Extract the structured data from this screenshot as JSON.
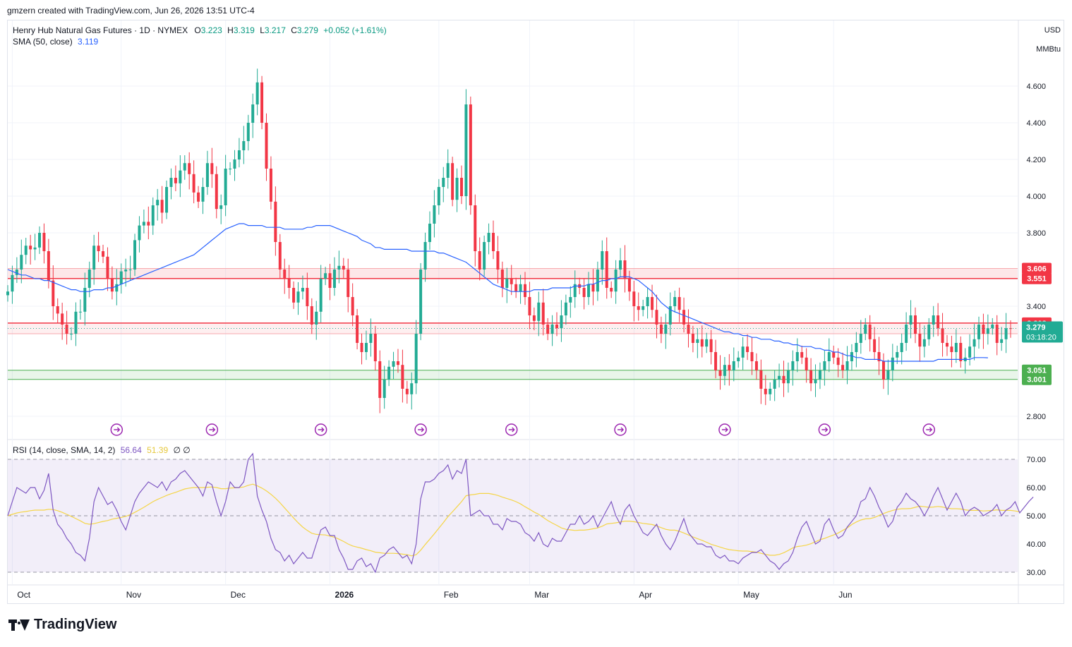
{
  "header": {
    "credit": "gmzern created with TradingView.com, Jun 26, 2026 13:51 UTC-4"
  },
  "legend": {
    "symbol": "Henry Hub Natural Gas Futures · 1D · NYMEX",
    "o_label": "O",
    "o": "3.223",
    "h_label": "H",
    "h": "3.319",
    "l_label": "L",
    "l": "3.217",
    "c_label": "C",
    "c": "3.279",
    "change": "+0.052 (+1.61%)",
    "sma_label": "SMA (50, close)",
    "sma_value": "3.119"
  },
  "units": {
    "currency": "USD",
    "unit": "MMBtu"
  },
  "rsi_legend": {
    "label": "RSI (14, close, SMA, 14, 2)",
    "rsi": "56.64",
    "sma": "51.39",
    "extra": "∅ ∅"
  },
  "footer": {
    "brand": "TradingView"
  },
  "colors": {
    "up": "#22ab94",
    "down": "#f23645",
    "sma": "#2962ff",
    "rsi": "#7e57c2",
    "rsi_sma": "#f5d547",
    "last": "#22ab94"
  },
  "chart_data": [
    {
      "type": "candlestick",
      "ylim": [
        2.7,
        4.8
      ],
      "yticks": [
        4.6,
        4.4,
        4.2,
        4.0,
        3.8,
        3.4,
        2.8
      ],
      "ytick_labels": [
        "4.600",
        "4.400",
        "4.200",
        "4.000",
        "3.800",
        "3.400",
        "2.800"
      ],
      "x_labels": [
        {
          "label": "Oct",
          "i": 1
        },
        {
          "label": "Nov",
          "i": 25
        },
        {
          "label": "Dec",
          "i": 48
        },
        {
          "label": "2026",
          "i": 71
        },
        {
          "label": "Feb",
          "i": 95
        },
        {
          "label": "Mar",
          "i": 115
        },
        {
          "label": "Apr",
          "i": 138
        },
        {
          "label": "May",
          "i": 161
        },
        {
          "label": "Jun",
          "i": 182
        }
      ],
      "resistance_zone": [
        3.551,
        3.606
      ],
      "level_band": [
        3.25,
        3.308
      ],
      "support_zone": [
        3.001,
        3.051
      ],
      "price_labels": [
        {
          "value": "3.606",
          "y": 3.606,
          "kind": "res"
        },
        {
          "value": "3.551",
          "y": 3.551,
          "kind": "res"
        },
        {
          "value": "3.308",
          "y": 3.308,
          "kind": "res"
        },
        {
          "value": "3.250",
          "y": 3.25,
          "kind": "res"
        },
        {
          "value": "3.051",
          "y": 3.051,
          "kind": "sup"
        },
        {
          "value": "3.001",
          "y": 3.001,
          "kind": "sup"
        }
      ],
      "last_price": {
        "value": "3.279",
        "countdown": "03:18:20"
      },
      "event_markers": [
        24,
        45,
        69,
        91,
        111,
        135,
        158,
        180,
        203
      ],
      "closes": [
        3.48,
        3.57,
        3.6,
        3.68,
        3.73,
        3.71,
        3.72,
        3.8,
        3.7,
        3.54,
        3.4,
        3.36,
        3.3,
        3.25,
        3.25,
        3.37,
        3.37,
        3.5,
        3.6,
        3.73,
        3.7,
        3.67,
        3.55,
        3.48,
        3.52,
        3.59,
        3.6,
        3.6,
        3.76,
        3.84,
        3.86,
        3.84,
        3.95,
        3.98,
        3.91,
        4.05,
        4.1,
        4.07,
        4.14,
        4.18,
        4.12,
        4.02,
        3.97,
        4.05,
        4.18,
        4.12,
        3.93,
        3.95,
        4.15,
        4.15,
        4.2,
        4.25,
        4.3,
        4.4,
        4.5,
        4.62,
        4.4,
        4.15,
        3.97,
        3.75,
        3.6,
        3.55,
        3.5,
        3.42,
        3.48,
        3.5,
        3.4,
        3.3,
        3.37,
        3.55,
        3.58,
        3.5,
        3.6,
        3.62,
        3.6,
        3.45,
        3.35,
        3.2,
        3.15,
        3.2,
        3.25,
        3.1,
        2.9,
        3.0,
        3.07,
        3.1,
        3.08,
        2.95,
        2.92,
        2.98,
        3.25,
        3.6,
        3.75,
        3.85,
        3.95,
        4.05,
        4.1,
        4.18,
        3.98,
        4.1,
        4.0,
        4.5,
        3.95,
        3.7,
        3.6,
        3.75,
        3.8,
        3.7,
        3.6,
        3.5,
        3.55,
        3.52,
        3.48,
        3.52,
        3.45,
        3.35,
        3.32,
        3.42,
        3.3,
        3.25,
        3.3,
        3.28,
        3.35,
        3.42,
        3.45,
        3.52,
        3.5,
        3.45,
        3.52,
        3.48,
        3.6,
        3.7,
        3.5,
        3.48,
        3.6,
        3.65,
        3.55,
        3.48,
        3.4,
        3.38,
        3.4,
        3.45,
        3.38,
        3.3,
        3.25,
        3.3,
        3.4,
        3.45,
        3.38,
        3.3,
        3.25,
        3.2,
        3.22,
        3.18,
        3.22,
        3.15,
        3.05,
        3.02,
        3.08,
        3.05,
        3.1,
        3.12,
        3.18,
        3.15,
        3.1,
        3.05,
        2.95,
        2.92,
        2.95,
        3.0,
        3.02,
        2.98,
        3.05,
        3.1,
        3.15,
        3.12,
        3.05,
        2.98,
        3.0,
        3.05,
        3.1,
        3.15,
        3.12,
        3.08,
        3.05,
        3.1,
        3.15,
        3.2,
        3.25,
        3.3,
        3.22,
        3.15,
        3.1,
        3.0,
        3.05,
        3.12,
        3.15,
        3.2,
        3.3,
        3.35,
        3.25,
        3.18,
        3.22,
        3.3,
        3.35,
        3.28,
        3.2,
        3.18,
        3.15,
        3.2,
        3.1,
        3.12,
        3.18,
        3.22,
        3.3,
        3.25,
        3.28,
        3.3,
        3.2,
        3.22,
        3.28,
        3.279
      ],
      "sma50": [
        3.6,
        3.59,
        3.58,
        3.57,
        3.57,
        3.56,
        3.55,
        3.55,
        3.54,
        3.54,
        3.53,
        3.52,
        3.51,
        3.5,
        3.49,
        3.49,
        3.48,
        3.48,
        3.48,
        3.49,
        3.49,
        3.49,
        3.5,
        3.5,
        3.51,
        3.52,
        3.53,
        3.54,
        3.55,
        3.56,
        3.57,
        3.58,
        3.59,
        3.6,
        3.61,
        3.62,
        3.63,
        3.64,
        3.65,
        3.66,
        3.67,
        3.68,
        3.7,
        3.72,
        3.74,
        3.76,
        3.78,
        3.8,
        3.82,
        3.83,
        3.84,
        3.85,
        3.85,
        3.84,
        3.84,
        3.84,
        3.84,
        3.83,
        3.83,
        3.83,
        3.83,
        3.82,
        3.82,
        3.82,
        3.82,
        3.82,
        3.83,
        3.83,
        3.84,
        3.84,
        3.84,
        3.84,
        3.83,
        3.82,
        3.81,
        3.8,
        3.79,
        3.78,
        3.76,
        3.75,
        3.74,
        3.72,
        3.72,
        3.71,
        3.71,
        3.71,
        3.71,
        3.71,
        3.71,
        3.7,
        3.7,
        3.7,
        3.7,
        3.7,
        3.7,
        3.69,
        3.69,
        3.68,
        3.67,
        3.66,
        3.65,
        3.64,
        3.62,
        3.6,
        3.58,
        3.56,
        3.54,
        3.52,
        3.51,
        3.5,
        3.49,
        3.48,
        3.48,
        3.48,
        3.48,
        3.48,
        3.49,
        3.49,
        3.49,
        3.49,
        3.5,
        3.5,
        3.5,
        3.5,
        3.5,
        3.51,
        3.51,
        3.51,
        3.52,
        3.52,
        3.53,
        3.54,
        3.54,
        3.55,
        3.55,
        3.56,
        3.56,
        3.56,
        3.55,
        3.54,
        3.52,
        3.5,
        3.48,
        3.45,
        3.42,
        3.4,
        3.38,
        3.37,
        3.36,
        3.35,
        3.34,
        3.33,
        3.32,
        3.31,
        3.3,
        3.29,
        3.28,
        3.27,
        3.26,
        3.26,
        3.25,
        3.25,
        3.24,
        3.24,
        3.23,
        3.23,
        3.22,
        3.22,
        3.22,
        3.21,
        3.21,
        3.2,
        3.2,
        3.19,
        3.19,
        3.18,
        3.18,
        3.18,
        3.17,
        3.17,
        3.16,
        3.16,
        3.15,
        3.15,
        3.14,
        3.13,
        3.13,
        3.12,
        3.12,
        3.11,
        3.11,
        3.11,
        3.11,
        3.1,
        3.1,
        3.1,
        3.1,
        3.1,
        3.1,
        3.1,
        3.1,
        3.1,
        3.1,
        3.1,
        3.1,
        3.11,
        3.11,
        3.11,
        3.11,
        3.11,
        3.11,
        3.11,
        3.11,
        3.12,
        3.12,
        3.12,
        3.119
      ]
    },
    {
      "type": "line",
      "title": "RSI (14, close, SMA, 14, 2)",
      "ylim": [
        25,
        75
      ],
      "yticks": [
        70,
        60,
        50,
        40,
        30
      ],
      "ytick_labels": [
        "70.00",
        "60.00",
        "50.00",
        "40.00",
        "30.00"
      ],
      "band": [
        30,
        70
      ],
      "midline": 50,
      "rsi": [
        50,
        55,
        60,
        59,
        58,
        60,
        60,
        56,
        59,
        65,
        52,
        47,
        45,
        42,
        40,
        37,
        36,
        34,
        42,
        55,
        60,
        57,
        54,
        55,
        52,
        48,
        45,
        50,
        55,
        58,
        60,
        62,
        61,
        60,
        62,
        59,
        62,
        63,
        65,
        66,
        64,
        62,
        60,
        57,
        62,
        61,
        55,
        50,
        55,
        62,
        60,
        60,
        62,
        70,
        72,
        57,
        52,
        48,
        42,
        38,
        37,
        34,
        36,
        33,
        35,
        37,
        35,
        35,
        40,
        45,
        46,
        43,
        43,
        38,
        35,
        31,
        31,
        34,
        35,
        32,
        33,
        30,
        35,
        36,
        38,
        39,
        37,
        35,
        36,
        33,
        40,
        56,
        62,
        62,
        63,
        65,
        66,
        68,
        63,
        66,
        65,
        70,
        50,
        51,
        52,
        50,
        50,
        47,
        47,
        45,
        49,
        48,
        48,
        47,
        44,
        43,
        41,
        44,
        40,
        39,
        42,
        41,
        41,
        44,
        47,
        47,
        50,
        47,
        48,
        50,
        46,
        49,
        52,
        55,
        50,
        47,
        52,
        54,
        50,
        47,
        44,
        43,
        45,
        47,
        43,
        40,
        38,
        41,
        45,
        49,
        44,
        42,
        40,
        40,
        39,
        39,
        36,
        35,
        36,
        34,
        34,
        33,
        35,
        36,
        37,
        37,
        38,
        36,
        34,
        33,
        31,
        33,
        34,
        37,
        42,
        46,
        48,
        44,
        40,
        41,
        47,
        49,
        45,
        42,
        43,
        46,
        48,
        50,
        55,
        56,
        60,
        57,
        53,
        50,
        46,
        48,
        53,
        55,
        58,
        56,
        55,
        53,
        50,
        53,
        57,
        60,
        56,
        52,
        55,
        58,
        55,
        50,
        52,
        53,
        52,
        50,
        51,
        52,
        54,
        50,
        52,
        53,
        55,
        51,
        53,
        55,
        56.64
      ],
      "rsi_sma": [
        50,
        50.5,
        51,
        51.3,
        51.5,
        51.8,
        52,
        52,
        52,
        52.3,
        52.2,
        51.8,
        51.2,
        50.5,
        49.8,
        49,
        48.2,
        47.3,
        47,
        47.2,
        47.6,
        48,
        48.3,
        48.8,
        49.1,
        49.4,
        49.8,
        50.4,
        51.2,
        52.1,
        53,
        54,
        55,
        55.8,
        56.5,
        57.2,
        57.8,
        58.3,
        58.9,
        59.5,
        59.8,
        60,
        60,
        60,
        60.1,
        60.2,
        60,
        59.6,
        59.6,
        59.8,
        59.9,
        60,
        60.2,
        60.8,
        61.2,
        60.6,
        59.8,
        58.8,
        57.6,
        56.2,
        54.6,
        52.8,
        51,
        49.2,
        47.5,
        46,
        44.8,
        43.8,
        43.4,
        43.3,
        43.2,
        42.8,
        42.4,
        41.7,
        40.9,
        40,
        39.3,
        38.9,
        38.5,
        38,
        37.6,
        37.1,
        36.9,
        36.7,
        36.7,
        36.7,
        36.6,
        36.4,
        36.2,
        35.8,
        36.2,
        37.8,
        39.8,
        41.7,
        43.6,
        45.6,
        47.6,
        49.7,
        51.4,
        53.2,
        55,
        57.1,
        57.4,
        57.6,
        57.9,
        57.9,
        57.9,
        57.6,
        57.2,
        56.6,
        56.1,
        55.6,
        55,
        54.2,
        53.2,
        52.3,
        51.3,
        50.5,
        49.4,
        48.3,
        47.4,
        46.6,
        45.7,
        45.2,
        45,
        44.8,
        44.9,
        44.9,
        45.1,
        45.4,
        45.7,
        46.3,
        47.1,
        47.3,
        47.5,
        47.8,
        48.1,
        48.1,
        47.9,
        47.6,
        47.3,
        47.1,
        46.9,
        46.4,
        45.8,
        45.2,
        44.9,
        44.9,
        44.5,
        43.9,
        43.2,
        42.5,
        41.9,
        41.3,
        40.6,
        39.9,
        39.4,
        38.9,
        38.4,
        38,
        37.8,
        37.6,
        37.5,
        37.5,
        37.3,
        37.1,
        36.7,
        36.3,
        36,
        36,
        36.3,
        36.9,
        37.7,
        38.6,
        39.1,
        39.3,
        39.6,
        40.1,
        40.8,
        41.5,
        42,
        42.6,
        43.2,
        43.9,
        44.8,
        45.7,
        46.9,
        47.8,
        48.5,
        48.9,
        49,
        49.4,
        50.1,
        50.8,
        51.4,
        51.9,
        52.3,
        52.5,
        52.5,
        52.6,
        53,
        53.4,
        53.2,
        53,
        53.1,
        53.3,
        53.1,
        52.7,
        52.5,
        52.5,
        52.4,
        52.1,
        51.9,
        51.9,
        51.9,
        51.7,
        51.8,
        51.9,
        52.1,
        51.9,
        51.9,
        51.9,
        51.7,
        51.39
      ]
    }
  ]
}
